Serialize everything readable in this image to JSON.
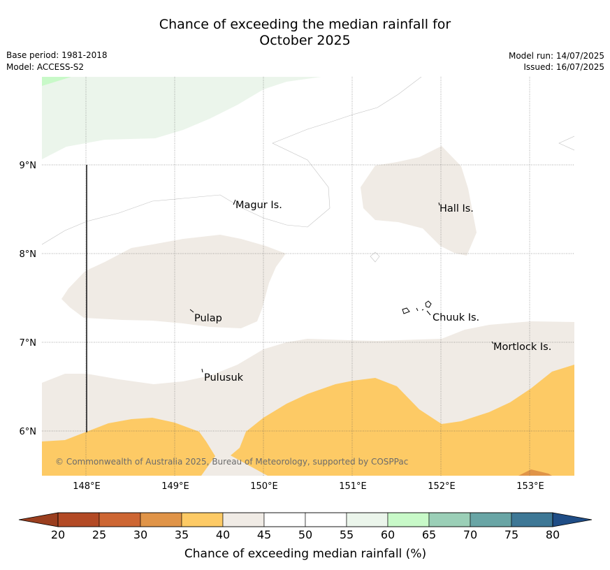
{
  "title": {
    "line1": "Chance of exceeding the median rainfall for",
    "line2": "October 2025"
  },
  "meta": {
    "base_period": "Base period: 1981-2018",
    "model": "Model: ACCESS-S2",
    "model_run": "Model run: 14/07/2025",
    "issued": "Issued: 16/07/2025"
  },
  "map": {
    "lon_ticks": [
      "148°E",
      "149°E",
      "150°E",
      "151°E",
      "152°E",
      "153°E"
    ],
    "lat_ticks": [
      "9°N",
      "8°N",
      "7°N",
      "6°N"
    ],
    "places": {
      "magur": "Magur Is.",
      "hall": "Hall Is.",
      "pulap": "Pulap",
      "chuuk": "Chuuk Is.",
      "mortlock": "Mortlock Is.",
      "pulusuk": "Pulusuk"
    },
    "copyright": "© Commonwealth of Australia 2025, Bureau of Meteorology, supported by COSPPac"
  },
  "colorbar": {
    "label": "Chance of exceeding median rainfall (%)",
    "ticks": [
      "20",
      "25",
      "30",
      "35",
      "40",
      "45",
      "50",
      "55",
      "60",
      "65",
      "70",
      "75",
      "80"
    ],
    "colors": [
      "#b34a25",
      "#cd6633",
      "#e09448",
      "#fdca65",
      "#f0ebe5",
      "#ffffff",
      "#ffffff",
      "#ebf5eb",
      "#c8f9c8",
      "#9bcfb7",
      "#69a5a5",
      "#3e7896"
    ],
    "under_color": "#9a3e1e",
    "over_color": "#1f4d86"
  }
}
